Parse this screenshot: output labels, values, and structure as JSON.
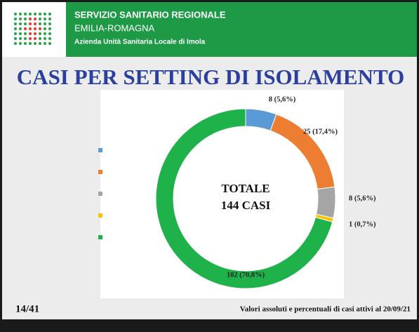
{
  "header": {
    "line1": "SERVIZIO SANITARIO REGIONALE",
    "line2": "EMILIA-ROMAGNA",
    "line3": "Azienda Unità Sanitaria Locale di Imola"
  },
  "chart_data": {
    "type": "donut",
    "title": "CASI PER SETTING DI ISOLAMENTO",
    "center_label": [
      "TOTALE",
      "144 CASI"
    ],
    "categories": [
      null,
      null,
      null,
      null,
      null
    ],
    "values": [
      8,
      25,
      8,
      1,
      102
    ],
    "value_labels": [
      "8 (5,6%)",
      "25 (17,4%)",
      "8 (5,6%)",
      "1 (0,7%)",
      "102 (70,8%)"
    ],
    "colors": [
      "#5b9bd5",
      "#ed7d31",
      "#a5a5a5",
      "#ffc000",
      "#1fb14a"
    ]
  },
  "footer": {
    "page": "14/41",
    "note": "Valori assoluti e percentuali di casi attivi al 20/09/21"
  }
}
